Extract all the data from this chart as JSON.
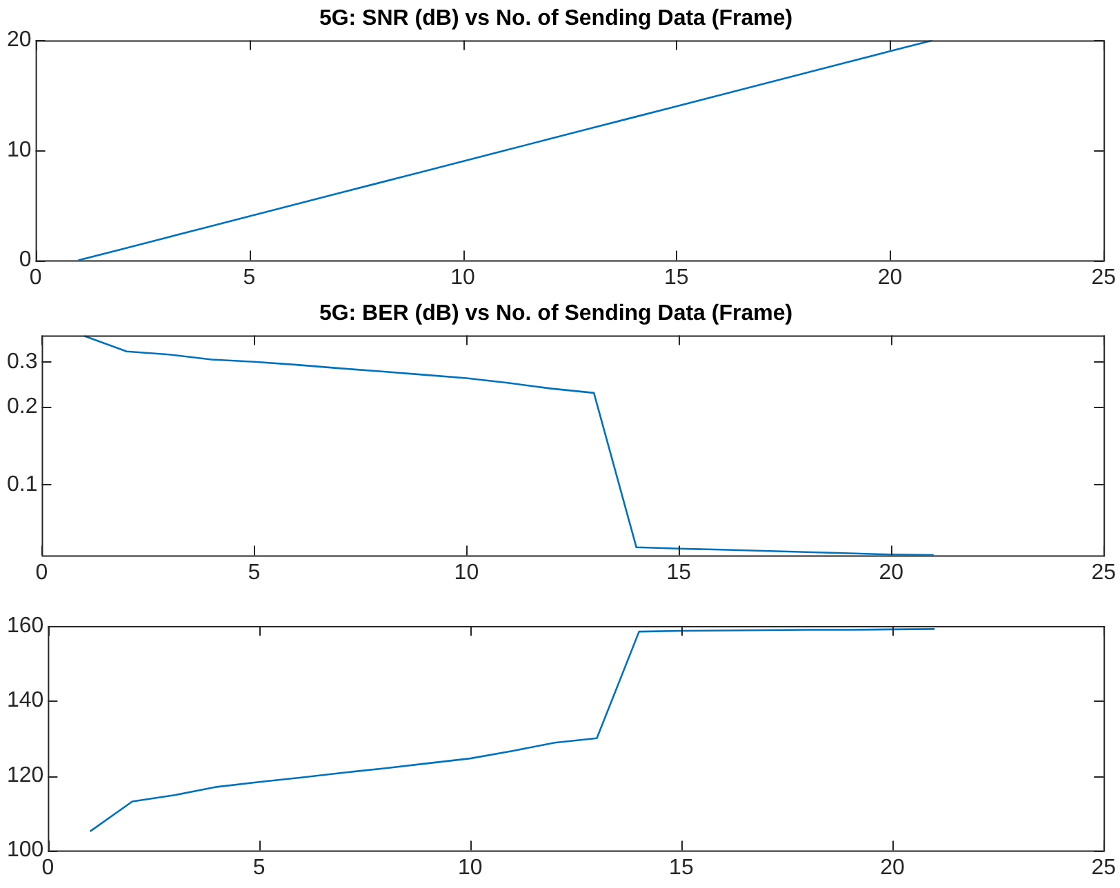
{
  "chart_data": [
    {
      "type": "line",
      "title": "5G: SNR (dB) vs No. of Sending Data (Frame)",
      "x": [
        1,
        2,
        3,
        4,
        5,
        6,
        7,
        8,
        9,
        10,
        11,
        12,
        13,
        14,
        15,
        16,
        17,
        18,
        19,
        20,
        21
      ],
      "series": [
        {
          "color": "#0072bd",
          "values": [
            0,
            1,
            2,
            3,
            4,
            5,
            6,
            7,
            8,
            9,
            10,
            11,
            12,
            13,
            14,
            15,
            16,
            17,
            18,
            19,
            20
          ]
        }
      ],
      "xlim": [
        0,
        25
      ],
      "xticks": [
        0,
        5,
        10,
        15,
        20,
        25
      ],
      "ylim": [
        0,
        20
      ],
      "yticks": [
        0,
        10,
        20
      ],
      "grid": false,
      "marker": "none"
    },
    {
      "type": "line",
      "title": "5G: BER (dB) vs No. of Sending Data (Frame)",
      "x": [
        1,
        2,
        3,
        4,
        5,
        6,
        7,
        8,
        9,
        10,
        11,
        12,
        13,
        14,
        15,
        16,
        17,
        18,
        19,
        20,
        21
      ],
      "series": [
        {
          "color": "#0072bd",
          "values": [
            0.378,
            0.329,
            0.32,
            0.306,
            0.3,
            0.292,
            0.283,
            0.275,
            0.267,
            0.259,
            0.248,
            0.236,
            0.227,
            0.057,
            0.0563,
            0.0558,
            0.0552,
            0.0546,
            0.054,
            0.0534,
            0.0532
          ]
        }
      ],
      "xlim": [
        0,
        25
      ],
      "xticks": [
        0,
        5,
        10,
        15,
        20,
        25
      ],
      "ylim": [
        0.053,
        0.38
      ],
      "yticks": [
        0.1,
        0.2,
        0.3
      ],
      "log": "y",
      "grid": false,
      "marker": "none"
    },
    {
      "type": "line",
      "x": [
        1,
        2,
        3,
        4,
        5,
        6,
        7,
        8,
        9,
        10,
        11,
        12,
        13,
        14,
        15,
        16,
        17,
        18,
        19,
        20,
        21
      ],
      "series": [
        {
          "color": "#0072bd",
          "values": [
            105.1,
            113.1,
            114.8,
            117,
            118.3,
            119.5,
            120.8,
            122,
            123.3,
            124.6,
            126.6,
            128.8,
            130,
            158.5,
            158.7,
            158.8,
            158.9,
            159,
            159,
            159.1,
            159.2
          ]
        }
      ],
      "xlim": [
        0,
        25
      ],
      "xticks": [
        0,
        5,
        10,
        15,
        20,
        25
      ],
      "ylim": [
        100,
        160
      ],
      "yticks": [
        100,
        120,
        140,
        160
      ],
      "grid": false,
      "marker": "none"
    }
  ]
}
